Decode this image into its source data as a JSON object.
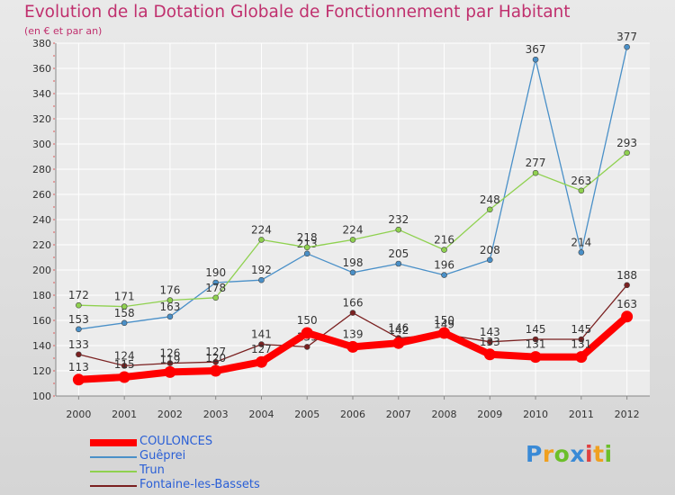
{
  "title": "Evolution de la Dotation Globale de Fonctionnement par Habitant",
  "subtitle": "(en € et par an)",
  "logo_text": "Proxiti",
  "chart_data": {
    "type": "line",
    "title": "Evolution de la Dotation Globale de Fonctionnement par Habitant",
    "subtitle": "(en € et par an)",
    "x": [
      "2000",
      "2001",
      "2002",
      "2003",
      "2004",
      "2005",
      "2006",
      "2007",
      "2008",
      "2009",
      "2010",
      "2011",
      "2012"
    ],
    "ylim": [
      100,
      380
    ],
    "yticks": [
      100,
      120,
      140,
      160,
      180,
      200,
      220,
      240,
      260,
      280,
      300,
      320,
      340,
      360,
      380
    ],
    "grid": true,
    "legend_position": "bottom-left",
    "series": [
      {
        "name": "COULONCES",
        "color": "#ff0000",
        "values": [
          113,
          115,
          119,
          120,
          127,
          150,
          139,
          142,
          150,
          133,
          131,
          131,
          163
        ]
      },
      {
        "name": "Guêprei",
        "color": "#4a90c8",
        "values": [
          153,
          158,
          163,
          190,
          192,
          213,
          198,
          205,
          196,
          208,
          367,
          214,
          377
        ]
      },
      {
        "name": "Trun",
        "color": "#8fd14f",
        "values": [
          172,
          171,
          176,
          178,
          224,
          218,
          224,
          232,
          216,
          248,
          277,
          263,
          293
        ]
      },
      {
        "name": "Fontaine-les-Bassets",
        "color": "#7a2020",
        "values": [
          133,
          124,
          126,
          127,
          141,
          139,
          166,
          146,
          149,
          143,
          145,
          145,
          188
        ]
      }
    ]
  }
}
